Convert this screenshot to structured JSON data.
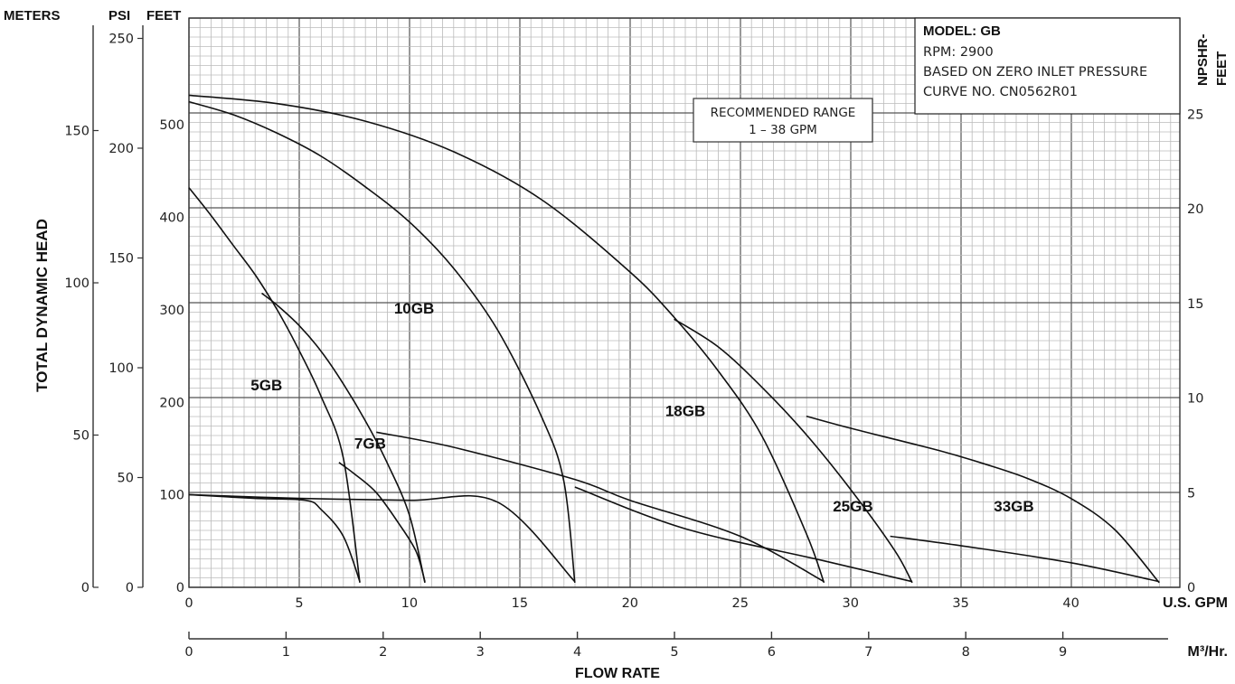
{
  "chart_data": {
    "type": "line",
    "xlabel": "FLOW RATE",
    "x_unit_gpm": "U.S. GPM",
    "x_unit_m3": "M³/Hr.",
    "ylabel": "TOTAL DYNAMIC HEAD",
    "axis_headers": {
      "meters": "METERS",
      "psi": "PSI",
      "feet": "FEET",
      "npshr": "NPSHR-\nFEET"
    },
    "npshr_label_lines": [
      "NPSHR-",
      "FEET"
    ],
    "xlim_gpm": [
      0,
      44
    ],
    "ylim_feet": [
      0,
      540
    ],
    "grid": true,
    "ticks": {
      "gpm": [
        0,
        5,
        10,
        15,
        20,
        25,
        30,
        35,
        40
      ],
      "m3": [
        0,
        1,
        2,
        3,
        4,
        5,
        6,
        7,
        8,
        9
      ],
      "feet": [
        0,
        100,
        200,
        300,
        400,
        500
      ],
      "psi": [
        0,
        50,
        100,
        150,
        200,
        250
      ],
      "meters": [
        0,
        50,
        100,
        150
      ],
      "npshr": [
        0,
        5,
        10,
        15,
        20,
        25
      ]
    },
    "info_box": {
      "title": "MODEL: GB",
      "lines": [
        "RPM: 2900",
        "BASED ON ZERO INLET PRESSURE",
        "CURVE NO. CN0562R01"
      ]
    },
    "range_box": {
      "line1": "RECOMMENDED RANGE",
      "line2": "1 – 38 GPM"
    },
    "series": [
      {
        "name": "5GB",
        "label_at": [
          2.8,
          213
        ],
        "head": [
          [
            0,
            432
          ],
          [
            1,
            402
          ],
          [
            2,
            370
          ],
          [
            3,
            338
          ],
          [
            4,
            300
          ],
          [
            5,
            256
          ],
          [
            6,
            206
          ],
          [
            7,
            140
          ],
          [
            7.75,
            5
          ]
        ],
        "npshr": [
          [
            0,
            4.9
          ],
          [
            3,
            4.7
          ],
          [
            5.3,
            4.6
          ],
          [
            6,
            4.1
          ],
          [
            7,
            2.7
          ],
          [
            7.75,
            0.3
          ]
        ]
      },
      {
        "name": "7GB",
        "label_at": [
          7.5,
          150
        ],
        "head": [
          [
            3.3,
            318
          ],
          [
            4,
            305
          ],
          [
            5,
            283
          ],
          [
            6,
            255
          ],
          [
            7,
            220
          ],
          [
            8,
            180
          ],
          [
            9,
            134
          ],
          [
            10,
            78
          ],
          [
            10.7,
            5
          ]
        ],
        "npshr": [
          [
            6.8,
            6.6
          ],
          [
            7.5,
            6
          ],
          [
            8.5,
            5
          ],
          [
            9.5,
            3.4
          ],
          [
            10.3,
            1.9
          ],
          [
            10.7,
            0.3
          ]
        ]
      },
      {
        "name": "10GB",
        "label_at": [
          9.3,
          296
        ],
        "head": [
          [
            0,
            525
          ],
          [
            2,
            511
          ],
          [
            4,
            491
          ],
          [
            6,
            466
          ],
          [
            8,
            433
          ],
          [
            10,
            395
          ],
          [
            12,
            345
          ],
          [
            14,
            278
          ],
          [
            16,
            184
          ],
          [
            17,
            115
          ],
          [
            17.5,
            5
          ]
        ],
        "npshr": [
          [
            0,
            4.9
          ],
          [
            5,
            4.7
          ],
          [
            10,
            4.6
          ],
          [
            14,
            4.5
          ],
          [
            17.5,
            0.3
          ]
        ]
      },
      {
        "name": "18GB",
        "label_at": [
          21.6,
          185
        ],
        "head": [
          [
            0,
            532
          ],
          [
            4,
            523
          ],
          [
            8,
            504
          ],
          [
            12,
            471
          ],
          [
            16,
            419
          ],
          [
            20,
            341
          ],
          [
            22,
            292
          ],
          [
            24,
            234
          ],
          [
            26,
            163
          ],
          [
            28,
            58
          ],
          [
            28.8,
            5
          ]
        ],
        "npshr": [
          [
            8.5,
            8.2
          ],
          [
            12,
            7.4
          ],
          [
            17.5,
            5.7
          ],
          [
            20,
            4.6
          ],
          [
            25,
            2.7
          ],
          [
            28.8,
            0.3
          ]
        ]
      },
      {
        "name": "25GB",
        "label_at": [
          29.2,
          82
        ],
        "head": [
          [
            22,
            290
          ],
          [
            24,
            260
          ],
          [
            26,
            216
          ],
          [
            28,
            165
          ],
          [
            30,
            106
          ],
          [
            32,
            40
          ],
          [
            32.8,
            5
          ]
        ],
        "npshr": [
          [
            17.5,
            5.3
          ],
          [
            22.5,
            3.1
          ],
          [
            28.8,
            1.4
          ],
          [
            32.8,
            0.3
          ]
        ]
      },
      {
        "name": "33GB",
        "label_at": [
          36.5,
          82
        ],
        "head": [
          [
            28,
            185
          ],
          [
            30,
            172
          ],
          [
            32,
            160
          ],
          [
            34,
            148
          ],
          [
            36,
            134
          ],
          [
            38,
            118
          ],
          [
            40,
            96
          ],
          [
            42,
            62
          ],
          [
            44,
            5
          ]
        ],
        "npshr": [
          [
            31.8,
            2.7
          ],
          [
            35,
            2.2
          ],
          [
            40,
            1.3
          ],
          [
            44,
            0.3
          ]
        ]
      }
    ]
  }
}
